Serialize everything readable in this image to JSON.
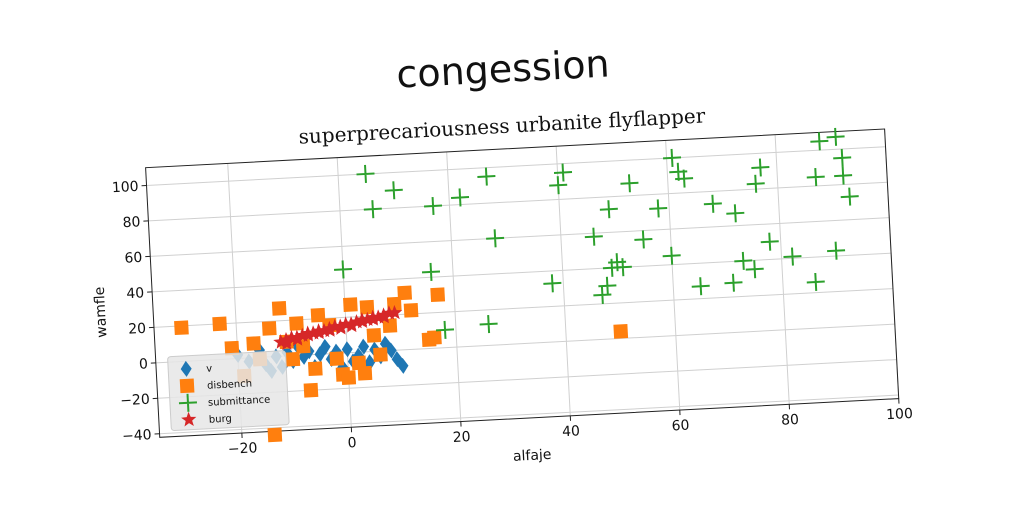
{
  "chart_data": {
    "type": "scatter",
    "title": "congession",
    "subtitle": "superprecariousness urbanite flyflapper",
    "xlabel": "alfaje",
    "ylabel": "wamfle",
    "xlim": [
      -35,
      100
    ],
    "ylim": [
      -42,
      110
    ],
    "xticks": [
      -20,
      0,
      20,
      40,
      60,
      80,
      100
    ],
    "xtick_labels": [
      "−20",
      "0",
      "20",
      "40",
      "60",
      "80",
      "100"
    ],
    "yticks": [
      -40,
      -20,
      0,
      20,
      40,
      60,
      80,
      100
    ],
    "ytick_labels": [
      "−40",
      "−20",
      "0",
      "20",
      "40",
      "60",
      "80",
      "100"
    ],
    "grid": true,
    "legend": "lower-left",
    "series": [
      {
        "name": "v",
        "marker": "diamond",
        "color": "#1f77b4",
        "points": [
          [
            -20,
            2
          ],
          [
            -18,
            -2
          ],
          [
            -16,
            4
          ],
          [
            -15,
            -4
          ],
          [
            -13,
            0
          ],
          [
            -12,
            -6
          ],
          [
            -11,
            2
          ],
          [
            -10,
            -3
          ],
          [
            -9,
            5
          ],
          [
            -8,
            -1
          ],
          [
            -7,
            2
          ],
          [
            -6,
            -7
          ],
          [
            -5,
            0
          ],
          [
            -4,
            4
          ],
          [
            -3,
            -3
          ],
          [
            -2,
            1
          ],
          [
            -1,
            -8
          ],
          [
            0,
            2
          ],
          [
            1,
            -5
          ],
          [
            2,
            -2
          ],
          [
            3,
            3
          ],
          [
            4,
            -6
          ],
          [
            5,
            1
          ],
          [
            6,
            -3
          ],
          [
            7,
            4
          ],
          [
            8,
            0
          ],
          [
            9,
            -5
          ],
          [
            10,
            -9
          ],
          [
            -14,
            -8
          ],
          [
            3,
            -9
          ]
        ]
      },
      {
        "name": "disbench",
        "marker": "square",
        "color": "#ff7f0e",
        "points": [
          [
            -30,
            19
          ],
          [
            -23,
            20
          ],
          [
            -21,
            6
          ],
          [
            -17,
            8
          ],
          [
            -16,
            -1
          ],
          [
            -14,
            16
          ],
          [
            -12,
            27
          ],
          [
            -11,
            8
          ],
          [
            -10,
            -2
          ],
          [
            -9,
            18
          ],
          [
            -8,
            5
          ],
          [
            -6,
            -8
          ],
          [
            -5,
            22
          ],
          [
            -3,
            16
          ],
          [
            -2,
            -3
          ],
          [
            -1,
            -12
          ],
          [
            0,
            -14
          ],
          [
            1,
            27
          ],
          [
            2,
            -6
          ],
          [
            3,
            -12
          ],
          [
            4,
            25
          ],
          [
            5,
            9
          ],
          [
            6,
            -2
          ],
          [
            8,
            14
          ],
          [
            9,
            26
          ],
          [
            11,
            32
          ],
          [
            12,
            22
          ],
          [
            15,
            5
          ],
          [
            16,
            6
          ],
          [
            17,
            30
          ],
          [
            50,
            4
          ],
          [
            -14,
            -44
          ],
          [
            -19,
            -10
          ],
          [
            -7,
            -20
          ]
        ]
      },
      {
        "name": "submittance",
        "marker": "plus",
        "color": "#2ca02c",
        "points": [
          [
            0,
            47
          ],
          [
            5,
            100
          ],
          [
            6,
            80
          ],
          [
            10,
            90
          ],
          [
            16,
            43
          ],
          [
            17,
            80
          ],
          [
            18,
            10
          ],
          [
            22,
            84
          ],
          [
            26,
            12
          ],
          [
            27,
            95
          ],
          [
            28,
            60
          ],
          [
            38,
            33
          ],
          [
            40,
            88
          ],
          [
            41,
            95
          ],
          [
            46,
            58
          ],
          [
            47,
            25
          ],
          [
            48,
            30
          ],
          [
            49,
            73
          ],
          [
            49,
            40
          ],
          [
            50,
            43
          ],
          [
            51,
            40
          ],
          [
            53,
            87
          ],
          [
            55,
            55
          ],
          [
            58,
            72
          ],
          [
            60,
            45
          ],
          [
            61,
            100
          ],
          [
            62,
            92
          ],
          [
            63,
            88
          ],
          [
            65,
            27
          ],
          [
            68,
            73
          ],
          [
            71,
            28
          ],
          [
            72,
            67
          ],
          [
            73,
            40
          ],
          [
            75,
            35
          ],
          [
            76,
            83
          ],
          [
            77,
            92
          ],
          [
            78,
            50
          ],
          [
            82,
            41
          ],
          [
            86,
            26
          ],
          [
            87,
            85
          ],
          [
            88,
            105
          ],
          [
            90,
            43
          ],
          [
            91,
            107
          ],
          [
            92,
            85
          ],
          [
            92,
            95
          ],
          [
            93,
            73
          ]
        ]
      },
      {
        "name": "burg",
        "marker": "star",
        "color": "#d62728",
        "points": [
          [
            -12,
            8
          ],
          [
            -11,
            9
          ],
          [
            -10,
            10
          ],
          [
            -9,
            10
          ],
          [
            -8,
            11
          ],
          [
            -7,
            12
          ],
          [
            -6,
            12
          ],
          [
            -5,
            13
          ],
          [
            -4,
            13
          ],
          [
            -3,
            14
          ],
          [
            -2,
            15
          ],
          [
            -1,
            15
          ],
          [
            0,
            16
          ],
          [
            1,
            16
          ],
          [
            2,
            17
          ],
          [
            3,
            18
          ],
          [
            4,
            18
          ],
          [
            5,
            19
          ],
          [
            6,
            19
          ],
          [
            7,
            20
          ],
          [
            8,
            21
          ],
          [
            9,
            21
          ],
          [
            -11,
            7
          ],
          [
            -9,
            9
          ],
          [
            -7,
            11
          ],
          [
            -5,
            12
          ],
          [
            -3,
            13
          ],
          [
            -1,
            14
          ],
          [
            1,
            15
          ],
          [
            3,
            17
          ],
          [
            5,
            18
          ],
          [
            7,
            19
          ]
        ]
      }
    ]
  }
}
